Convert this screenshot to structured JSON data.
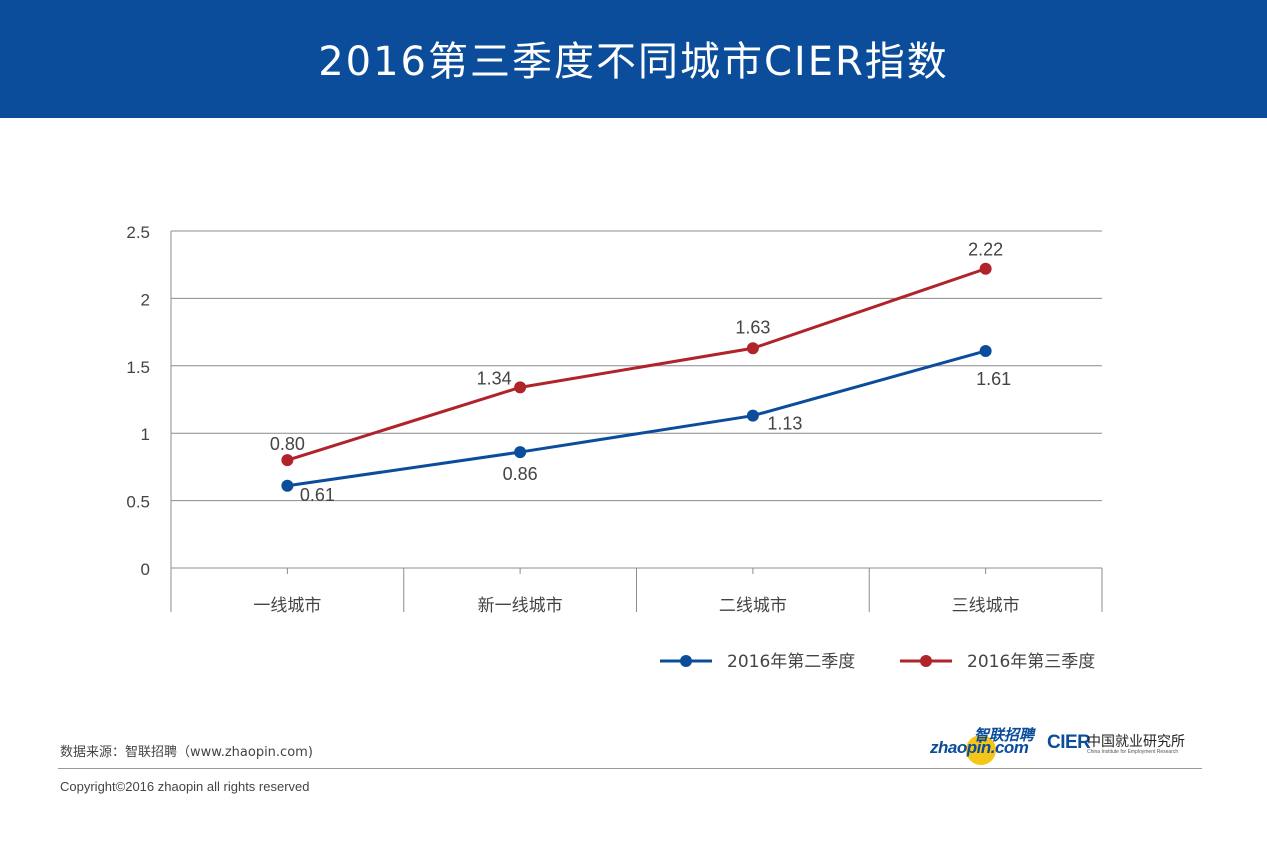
{
  "header": {
    "title": "2016第三季度不同城市CIER指数"
  },
  "colors": {
    "header_bg": "#0b4d9b",
    "series_q2": "#0b4d9b",
    "series_q3": "#b0232a",
    "gridline": "#8c8c8c",
    "text": "#444444"
  },
  "chart_data": {
    "type": "line",
    "title": "2016第三季度不同城市CIER指数",
    "xlabel": "",
    "ylabel": "",
    "categories": [
      "一线城市",
      "新一线城市",
      "二线城市",
      "三线城市"
    ],
    "ylim": [
      0,
      2.5
    ],
    "yticks": [
      0,
      0.5,
      1,
      1.5,
      2,
      2.5
    ],
    "ytick_labels": [
      "0",
      "0.5",
      "1",
      "1.5",
      "2",
      "2.5"
    ],
    "grid": true,
    "legend_position": "bottom-right",
    "series": [
      {
        "name": "2016年第二季度",
        "values": [
          0.61,
          0.86,
          1.13,
          1.61
        ],
        "labels": [
          "0.61",
          "0.86",
          "1.13",
          "1.61"
        ],
        "color": "#0b4d9b"
      },
      {
        "name": "2016年第三季度",
        "values": [
          0.8,
          1.34,
          1.63,
          2.22
        ],
        "labels": [
          "0.80",
          "1.34",
          "1.63",
          "2.22"
        ],
        "color": "#b0232a"
      }
    ]
  },
  "footer": {
    "source": "数据来源：智联招聘（www.zhaopin.com)",
    "copyright": "Copyright©2016 zhaopin all rights reserved"
  },
  "logos": {
    "zhaopin_cn": "智联招聘",
    "zhaopin_en": "zhaopin.com",
    "cier_mark": "CIER",
    "cier_cn": "中国就业研究所",
    "cier_en": "China Institute for Employment Research"
  }
}
